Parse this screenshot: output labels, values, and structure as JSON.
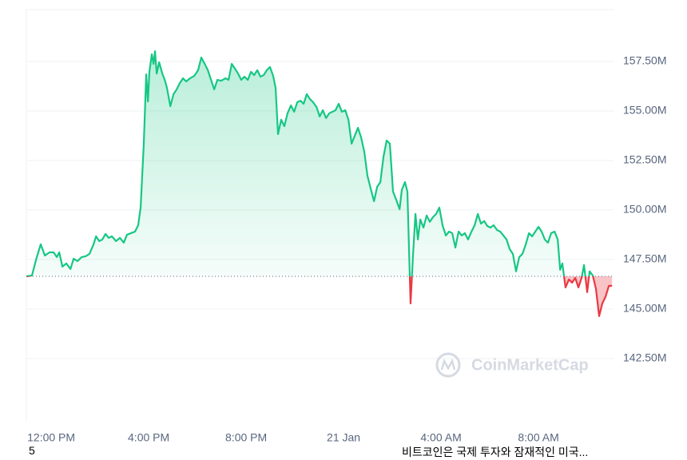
{
  "chart_data": {
    "type": "line",
    "x": [
      -1.02,
      -0.79,
      -0.62,
      -0.43,
      -0.26,
      -0.07,
      0.1,
      0.23,
      0.33,
      0.46,
      0.62,
      0.79,
      0.92,
      1.08,
      1.25,
      1.41,
      1.57,
      1.74,
      1.84,
      1.97,
      2.1,
      2.23,
      2.36,
      2.49,
      2.66,
      2.82,
      2.98,
      3.11,
      3.28,
      3.44,
      3.57,
      3.67,
      3.8,
      3.9,
      3.97,
      4.03,
      4.13,
      4.2,
      4.26,
      4.33,
      4.43,
      4.56,
      4.66,
      4.75,
      4.89,
      5.02,
      5.15,
      5.28,
      5.41,
      5.54,
      5.7,
      5.87,
      6.03,
      6.16,
      6.3,
      6.43,
      6.56,
      6.69,
      6.82,
      6.98,
      7.15,
      7.28,
      7.41,
      7.54,
      7.67,
      7.8,
      7.93,
      8.07,
      8.2,
      8.33,
      8.46,
      8.59,
      8.72,
      8.85,
      8.98,
      9.11,
      9.21,
      9.31,
      9.44,
      9.57,
      9.7,
      9.84,
      9.97,
      10.1,
      10.23,
      10.36,
      10.49,
      10.62,
      10.75,
      10.89,
      11.02,
      11.15,
      11.28,
      11.41,
      11.54,
      11.67,
      11.8,
      11.93,
      12.07,
      12.2,
      12.33,
      12.46,
      12.59,
      12.72,
      12.85,
      12.98,
      13.11,
      13.25,
      13.38,
      13.51,
      13.64,
      13.77,
      13.9,
      14.03,
      14.16,
      14.3,
      14.39,
      14.52,
      14.62,
      14.75,
      14.85,
      14.95,
      15.05,
      15.15,
      15.28,
      15.41,
      15.54,
      15.67,
      15.8,
      15.93,
      16.07,
      16.2,
      16.33,
      16.46,
      16.59,
      16.72,
      16.85,
      16.98,
      17.11,
      17.25,
      17.38,
      17.51,
      17.64,
      17.77,
      17.9,
      18.03,
      18.16,
      18.3,
      18.43,
      18.56,
      18.69,
      18.82,
      18.95,
      19.08,
      19.21,
      19.34,
      19.48,
      19.61,
      19.74,
      19.87,
      20.0,
      20.13,
      20.26,
      20.39,
      20.52,
      20.66,
      20.79,
      20.89,
      20.98,
      21.11,
      21.25,
      21.38,
      21.51,
      21.64,
      21.77,
      21.87,
      22.0,
      22.1,
      22.23,
      22.36,
      22.49,
      22.62,
      22.75,
      22.89,
      23.02
    ],
    "series": [
      {
        "color_up": "#16c784",
        "color_down": "#ea3943",
        "values": [
          146.65,
          146.69,
          147.5,
          148.27,
          147.7,
          147.86,
          147.86,
          147.62,
          147.86,
          147.14,
          147.3,
          147.02,
          147.54,
          147.42,
          147.62,
          147.66,
          147.78,
          148.27,
          148.67,
          148.43,
          148.51,
          148.79,
          148.59,
          148.67,
          148.43,
          148.59,
          148.35,
          148.75,
          148.83,
          148.91,
          149.23,
          150.12,
          153.35,
          156.85,
          155.48,
          156.98,
          157.86,
          157.38,
          158.02,
          156.89,
          157.46,
          156.89,
          156.57,
          156.17,
          155.24,
          155.85,
          156.09,
          156.41,
          156.65,
          156.49,
          156.65,
          156.77,
          157.06,
          157.7,
          157.38,
          157.06,
          156.57,
          156.09,
          156.57,
          156.53,
          156.65,
          156.57,
          157.38,
          157.14,
          156.89,
          156.57,
          156.73,
          156.57,
          156.98,
          156.81,
          157.06,
          156.73,
          156.81,
          157.06,
          157.22,
          156.77,
          156.17,
          153.83,
          154.56,
          154.23,
          154.88,
          155.28,
          154.96,
          155.44,
          155.52,
          155.36,
          155.85,
          155.6,
          155.44,
          155.2,
          154.72,
          155.04,
          154.64,
          154.88,
          154.96,
          155.04,
          155.36,
          154.96,
          155.04,
          154.56,
          153.35,
          153.75,
          154.15,
          153.67,
          152.94,
          151.73,
          151.09,
          150.44,
          151.17,
          151.41,
          152.7,
          153.51,
          153.35,
          150.93,
          150.52,
          150.04,
          151.01,
          151.41,
          150.93,
          145.28,
          147.7,
          149.8,
          148.51,
          149.52,
          149.11,
          149.72,
          149.4,
          149.64,
          149.8,
          150.12,
          149.19,
          148.71,
          148.91,
          148.83,
          148.1,
          148.91,
          148.71,
          148.83,
          148.51,
          148.91,
          149.23,
          149.8,
          149.31,
          149.44,
          149.19,
          149.11,
          149.23,
          148.99,
          148.91,
          148.71,
          148.51,
          148.02,
          147.78,
          146.9,
          147.62,
          147.78,
          148.27,
          148.83,
          148.67,
          148.91,
          149.15,
          148.91,
          148.51,
          148.35,
          148.83,
          148.91,
          148.51,
          146.98,
          147.3,
          146.09,
          146.49,
          146.33,
          146.57,
          146.09,
          146.57,
          147.22,
          145.85,
          146.9,
          146.69,
          146.01,
          144.64,
          145.28,
          145.61,
          146.17,
          146.17
        ]
      }
    ],
    "baseline": 146.65,
    "xlim": [
      -1.02,
      23.08
    ],
    "xticks": [
      {
        "value": 0,
        "label": "12:00 PM"
      },
      {
        "value": 4,
        "label": "4:00 PM"
      },
      {
        "value": 8,
        "label": "8:00 PM"
      },
      {
        "value": 12,
        "label": "21 Jan"
      },
      {
        "value": 16,
        "label": "4:00 AM"
      },
      {
        "value": 20,
        "label": "8:00 AM"
      }
    ],
    "ylim": [
      139.35,
      160.12
    ],
    "yticks": [
      {
        "value": 142.5,
        "label": "142.50M"
      },
      {
        "value": 145,
        "label": "145.00M"
      },
      {
        "value": 147.5,
        "label": "147.50M"
      },
      {
        "value": 150,
        "label": "150.00M"
      },
      {
        "value": 152.5,
        "label": "152.50M"
      },
      {
        "value": 155,
        "label": "155.00M"
      },
      {
        "value": 157.5,
        "label": "157.50M"
      }
    ],
    "grid": true,
    "watermark": "CoinMarketCap"
  },
  "footer_left": "5",
  "footer_right": "비트코인은 국제 투자와 잠재적인 미국..."
}
